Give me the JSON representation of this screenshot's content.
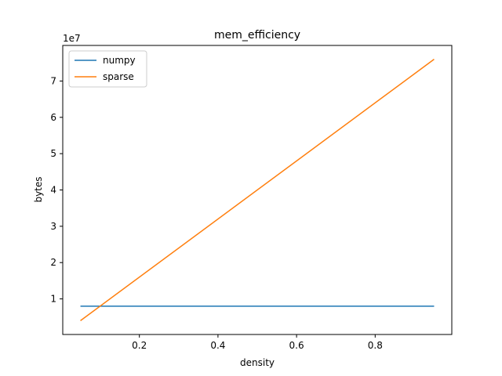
{
  "chart_data": {
    "type": "line",
    "title": "mem_efficiency",
    "xlabel": "density",
    "ylabel": "bytes",
    "y_offset_text": "1e7",
    "y_scale_factor": 10000000,
    "xlim": [
      0.005,
      0.995
    ],
    "ylim": [
      200000,
      79800000
    ],
    "x_ticks": [
      0.2,
      0.4,
      0.6,
      0.8
    ],
    "x_tick_labels": [
      "0.2",
      "0.4",
      "0.6",
      "0.8"
    ],
    "y_ticks": [
      10000000,
      20000000,
      30000000,
      40000000,
      50000000,
      60000000,
      70000000
    ],
    "y_tick_labels": [
      "1",
      "2",
      "3",
      "4",
      "5",
      "6",
      "7"
    ],
    "grid": false,
    "legend_position": "top-left",
    "series": [
      {
        "name": "numpy",
        "color": "#1f77b4",
        "x": [
          0.05,
          0.95
        ],
        "y": [
          8000000,
          8000000
        ]
      },
      {
        "name": "sparse",
        "color": "#ff7f0e",
        "x": [
          0.05,
          0.95
        ],
        "y": [
          4000000,
          76000000
        ]
      }
    ]
  }
}
